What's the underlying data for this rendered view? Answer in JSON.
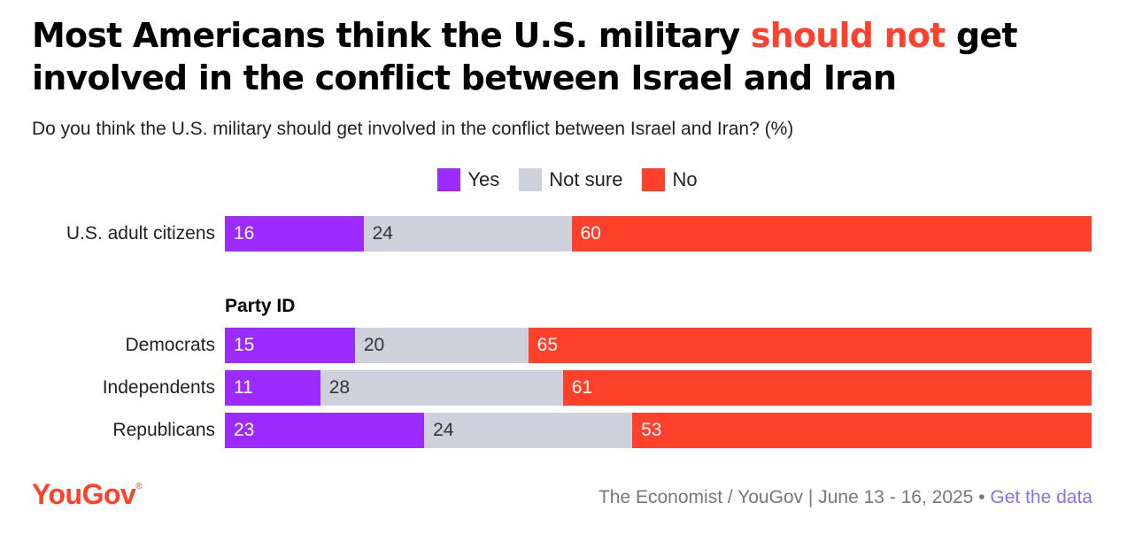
{
  "title": {
    "part1": "Most Americans think the U.S. military ",
    "highlight": "should not",
    "part2": " get involved in the conflict between Israel and Iran"
  },
  "subtitle": "Do you think the U.S. military should get involved in the conflict between Israel and Iran? (%)",
  "legend": [
    {
      "label": "Yes",
      "color": "#9b2bff"
    },
    {
      "label": "Not sure",
      "color": "#cdd1db"
    },
    {
      "label": "No",
      "color": "#ff412c"
    }
  ],
  "group_header": "Party ID",
  "chart_data": {
    "type": "bar",
    "stacked": true,
    "orientation": "horizontal",
    "categories": [
      "U.S. adult citizens",
      "Democrats",
      "Independents",
      "Republicans"
    ],
    "series": [
      {
        "name": "Yes",
        "values": [
          16,
          15,
          11,
          23
        ]
      },
      {
        "name": "Not sure",
        "values": [
          24,
          20,
          28,
          24
        ]
      },
      {
        "name": "No",
        "values": [
          60,
          65,
          61,
          53
        ]
      }
    ],
    "xlim": [
      0,
      100
    ],
    "legend_position": "top-center"
  },
  "footer": {
    "logo": "YouGov",
    "logo_mark": "®",
    "source": "The Economist / YouGov | June 13 - 16, 2025 •",
    "link": "Get the data"
  }
}
